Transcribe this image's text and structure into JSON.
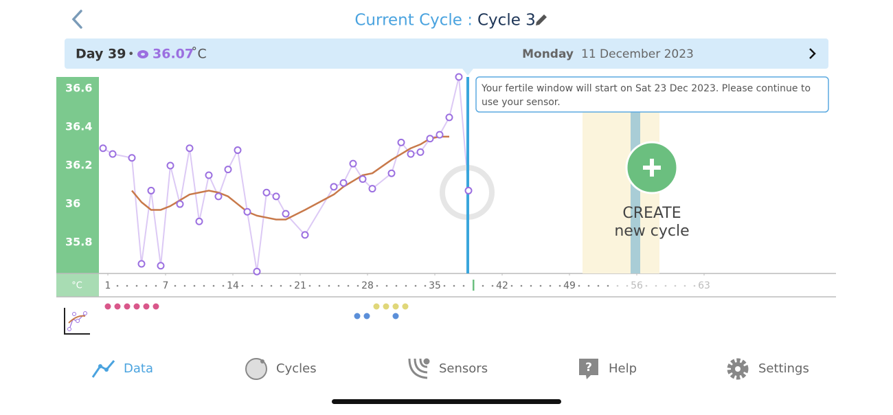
{
  "header": {
    "prefix": "Current Cycle :",
    "cycle": "Cycle 3"
  },
  "info_bar": {
    "day": "Day 39",
    "separator": "•",
    "temperature": "36.07",
    "unit": "˚C",
    "weekday": "Monday",
    "date": "11 December 2023"
  },
  "tooltip": {
    "text_1": "Your fertile window will start on Sat 23 Dec 2023. Please continue to",
    "text_2": "use your sensor."
  },
  "create_button": {
    "line_1": "CREATE",
    "line_2": "new cycle"
  },
  "chart_data": {
    "type": "line",
    "ylabel": "°C",
    "x": [
      1,
      2,
      4,
      5,
      6,
      7,
      8,
      9,
      10,
      11,
      12,
      13,
      14,
      15,
      16,
      17,
      18,
      19,
      20,
      22,
      25,
      26,
      27,
      28,
      29,
      31,
      32,
      33,
      34,
      35,
      36,
      37,
      38,
      39
    ],
    "series": [
      {
        "color": "#9b6fe0",
        "values": [
          36.29,
          36.26,
          36.24,
          35.69,
          36.07,
          35.68,
          36.2,
          36.0,
          36.29,
          35.91,
          36.15,
          36.04,
          36.18,
          36.28,
          35.96,
          35.65,
          36.06,
          36.04,
          35.95,
          35.84,
          36.09,
          36.11,
          36.21,
          36.13,
          36.08,
          36.16,
          36.32,
          36.26,
          36.27,
          36.34,
          36.36,
          36.45,
          36.66,
          36.07
        ]
      },
      {
        "color": "#c8794a",
        "values": [
          null,
          null,
          36.07,
          36.01,
          35.97,
          35.97,
          35.99,
          36.02,
          36.05,
          36.06,
          36.07,
          36.06,
          36.04,
          36.0,
          35.96,
          35.94,
          35.93,
          35.92,
          35.92,
          35.97,
          36.05,
          36.09,
          36.12,
          36.15,
          36.16,
          36.23,
          36.26,
          36.29,
          36.31,
          36.34,
          36.35,
          36.35,
          null,
          null
        ]
      }
    ],
    "current_day": 39,
    "xlim": [
      1,
      63
    ],
    "xticks": [
      1,
      7,
      14,
      21,
      28,
      35,
      42,
      49,
      56,
      63
    ],
    "ylim": [
      35.64,
      36.66
    ],
    "yticks": [
      36.6,
      36.4,
      36.2,
      36,
      35.8
    ]
  },
  "nav": {
    "data": "Data",
    "cycles": "Cycles",
    "sensors": "Sensors",
    "help": "Help",
    "settings": "Settings"
  }
}
